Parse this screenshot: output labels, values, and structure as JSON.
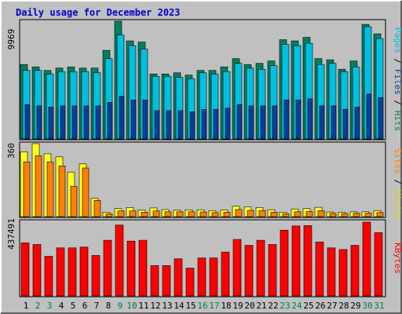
{
  "title": "Daily usage for December 2023",
  "colors": {
    "page_bg": "#c0c0c0",
    "plot_bg": "#c0c0c0",
    "title": "#0000d0",
    "weekend_day": "#008040",
    "weekday_day": "#000000",
    "hits_front": "#008060",
    "files_front": "#00c0e0",
    "pages_front": "#0040a0",
    "visits_front": "#ff8000",
    "sites_front": "#ffff20",
    "kbytes_front": "#ff0000",
    "label_pages": "#00c0e0",
    "label_files": "#0040a0",
    "label_hits": "#008060",
    "label_sites": "#ff8000",
    "label_visits": "#d8d800",
    "label_kbytes": "#ff0000"
  },
  "chart_data": [
    {
      "type": "bar",
      "panel": "top",
      "y_label": "9969",
      "ylim": [
        0,
        9969
      ],
      "legend": [
        "Pages",
        "Files",
        "Hits"
      ],
      "categories": [
        "1",
        "2",
        "3",
        "4",
        "5",
        "6",
        "7",
        "8",
        "9",
        "10",
        "11",
        "12",
        "13",
        "14",
        "15",
        "16",
        "17",
        "18",
        "19",
        "20",
        "21",
        "22",
        "23",
        "24",
        "25",
        "26",
        "27",
        "28",
        "29",
        "30",
        "31"
      ],
      "weekend_days": [
        "2",
        "3",
        "9",
        "10",
        "16",
        "17",
        "23",
        "24",
        "30",
        "31"
      ],
      "series": [
        {
          "name": "Hits",
          "values": [
            6300,
            6100,
            5800,
            6000,
            6100,
            6000,
            6000,
            7500,
            9969,
            8300,
            8200,
            5500,
            5500,
            5600,
            5400,
            5800,
            5800,
            6100,
            6800,
            6300,
            6400,
            6600,
            8400,
            8300,
            8600,
            6800,
            6700,
            5900,
            6600,
            9700,
            8900
          ]
        },
        {
          "name": "Files",
          "values": [
            5800,
            5800,
            5500,
            5700,
            5700,
            5700,
            5600,
            6800,
            8800,
            7900,
            7600,
            5300,
            5300,
            5200,
            5100,
            5600,
            5500,
            5700,
            6400,
            6000,
            5900,
            6200,
            8000,
            7900,
            8100,
            6300,
            6400,
            5700,
            6100,
            9500,
            8500
          ]
        },
        {
          "name": "Pages",
          "values": [
            2900,
            2800,
            2700,
            2800,
            2800,
            2800,
            2800,
            3100,
            3600,
            3300,
            3300,
            2400,
            2400,
            2400,
            2300,
            2500,
            2500,
            2600,
            2900,
            2800,
            2800,
            2800,
            3300,
            3300,
            3400,
            2800,
            2800,
            2500,
            2700,
            3800,
            3500
          ]
        }
      ]
    },
    {
      "type": "bar",
      "panel": "middle",
      "y_label": "360",
      "ylim": [
        0,
        360
      ],
      "legend": [
        "Sites",
        "Visits"
      ],
      "categories": [
        "1",
        "2",
        "3",
        "4",
        "5",
        "6",
        "7",
        "8",
        "9",
        "10",
        "11",
        "12",
        "13",
        "14",
        "15",
        "16",
        "17",
        "18",
        "19",
        "20",
        "21",
        "22",
        "23",
        "24",
        "25",
        "26",
        "27",
        "28",
        "29",
        "30",
        "31"
      ],
      "series": [
        {
          "name": "Visits",
          "values": [
            320,
            360,
            310,
            295,
            220,
            260,
            90,
            22,
            40,
            45,
            33,
            43,
            35,
            32,
            34,
            34,
            30,
            33,
            52,
            48,
            45,
            34,
            22,
            38,
            40,
            46,
            23,
            22,
            24,
            24,
            30
          ]
        },
        {
          "name": "Sites",
          "values": [
            270,
            300,
            270,
            250,
            150,
            240,
            80,
            14,
            28,
            28,
            22,
            28,
            24,
            24,
            24,
            23,
            20,
            22,
            35,
            31,
            30,
            22,
            14,
            24,
            25,
            30,
            16,
            15,
            17,
            17,
            20
          ]
        }
      ]
    },
    {
      "type": "bar",
      "panel": "bottom",
      "y_label": "437491",
      "ylim": [
        0,
        437491
      ],
      "legend": [
        "KBytes"
      ],
      "categories": [
        "1",
        "2",
        "3",
        "4",
        "5",
        "6",
        "7",
        "8",
        "9",
        "10",
        "11",
        "12",
        "13",
        "14",
        "15",
        "16",
        "17",
        "18",
        "19",
        "20",
        "21",
        "22",
        "23",
        "24",
        "25",
        "26",
        "27",
        "28",
        "29",
        "30",
        "31"
      ],
      "series": [
        {
          "name": "KBytes",
          "values": [
            315000,
            305000,
            235000,
            285000,
            285000,
            290000,
            240000,
            330000,
            420000,
            325000,
            330000,
            180000,
            180000,
            220000,
            165000,
            225000,
            225000,
            260000,
            335000,
            300000,
            330000,
            305000,
            390000,
            415000,
            417000,
            320000,
            285000,
            275000,
            300000,
            437491,
            375000
          ]
        }
      ]
    }
  ]
}
